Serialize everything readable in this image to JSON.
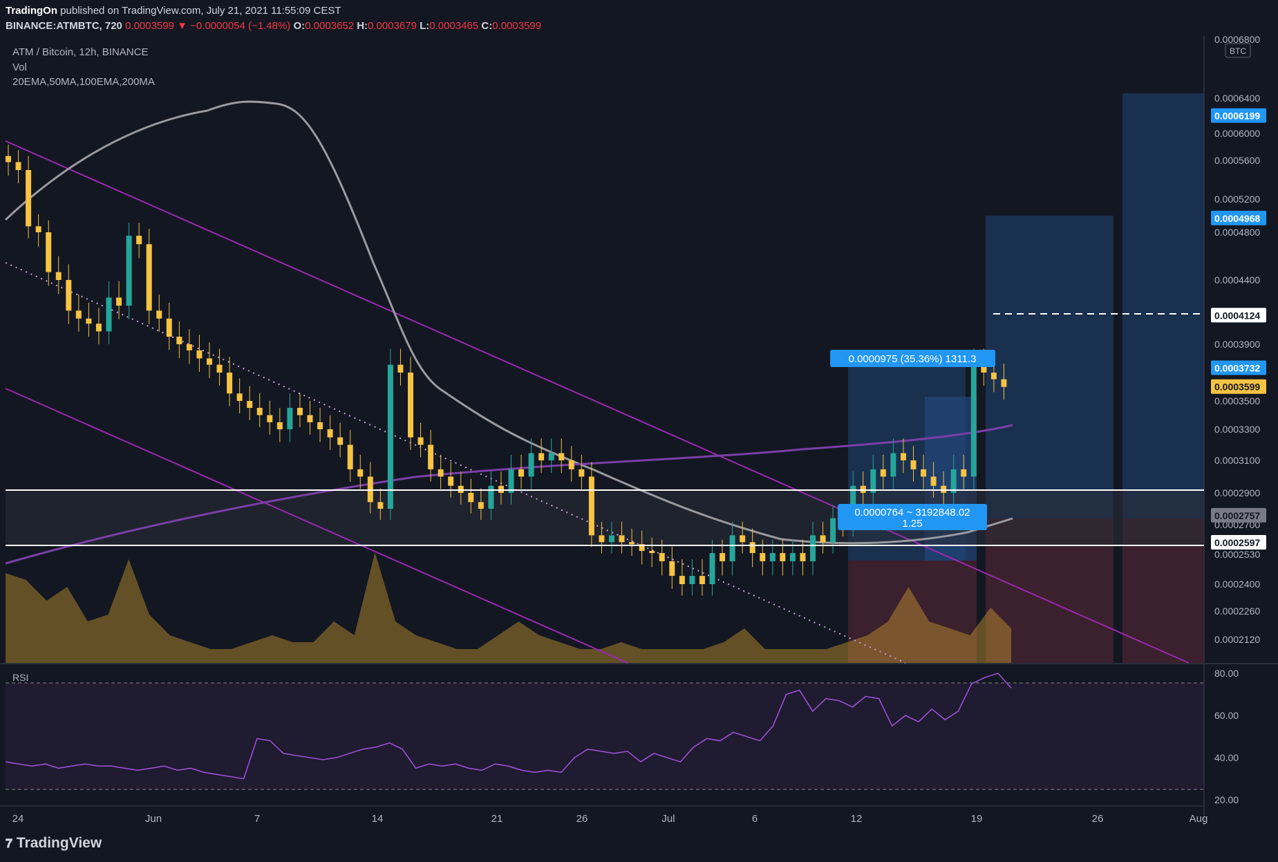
{
  "header": {
    "author": "TradingOn",
    "published": "published on TradingView.com, July 21, 2021 11:55:09 CEST",
    "symbol": "BINANCE:ATMBTC, 720",
    "last": "0.0003599",
    "change": "▼ −0.0000054 (−1.48%)",
    "o_label": "O:",
    "o": "0.0003652",
    "h_label": "H:",
    "h": "0.0003679",
    "l_label": "L:",
    "l": "0.0003465",
    "c_label": "C:",
    "c": "0.0003599"
  },
  "legend": {
    "pair": "ATM / Bitcoin, 12h, BINANCE",
    "vol": "Vol",
    "mas": "20EMA,50MA,100EMA,200MA"
  },
  "brand": "TradingView",
  "colors": {
    "background": "#131722",
    "up": "#26a69a",
    "down": "#f6c343",
    "channel": "#9c27b0",
    "ema": "#9a9aa0",
    "rsi_line": "#9c4fd6",
    "price_badge": "#2196f3",
    "current_badge": "#f6c343"
  },
  "chart_data": {
    "type": "candlestick",
    "title": "ATM / Bitcoin, 12h, BINANCE",
    "currency": "BTC",
    "y_axis_labels": [
      "0.0006800",
      "0.0006400",
      "0.0006000",
      "0.0005600",
      "0.0005200",
      "0.0004800",
      "0.0004400",
      "0.0003900",
      "0.0003500",
      "0.0003300",
      "0.0003100",
      "0.0002900",
      "0.0002700",
      "0.0002530",
      "0.0002400",
      "0.0002260",
      "0.0002120"
    ],
    "y_axis_values": [
      0.00068,
      0.00064,
      0.0006,
      0.00056,
      0.00052,
      0.00048,
      0.00044,
      0.00039,
      0.00035,
      0.00033,
      0.00031,
      0.00029,
      0.00027,
      0.000253,
      0.00024,
      0.000226,
      0.000212
    ],
    "x_axis_labels": [
      "24",
      "Jun",
      "7",
      "14",
      "21",
      "26",
      "Jul",
      "6",
      "12",
      "19",
      "26",
      "Aug"
    ],
    "price_badges": [
      {
        "value": "0.0006199",
        "style": "blue"
      },
      {
        "value": "0.0004968",
        "style": "blue"
      },
      {
        "value": "0.0004124",
        "style": "outline"
      },
      {
        "value": "0.0003732",
        "style": "blue"
      },
      {
        "value": "0.0003599",
        "style": "current"
      },
      {
        "value": "0.0002757",
        "style": "grey"
      },
      {
        "value": "0.0002597",
        "style": "outline"
      }
    ],
    "measure_labels": {
      "upper": "0.0000975 (35.36%) 1311.3",
      "lower_line1": "0.0000764 ~ 3192848.02",
      "lower_line2": "1.25"
    },
    "support_levels": [
      0.000292,
      0.0002597
    ],
    "dashed_level": 0.0004124,
    "candle_closes": [
      0.00055,
      0.00048,
      0.00044,
      0.00041,
      0.0004,
      0.00042,
      0.00047,
      0.00041,
      0.00039,
      0.00038,
      0.00037,
      0.00035,
      0.00034,
      0.00033,
      0.00034,
      0.00033,
      0.00032,
      0.0003,
      0.00028,
      0.00037,
      0.00032,
      0.0003,
      0.00029,
      0.00028,
      0.00029,
      0.0003,
      0.00031,
      0.00031,
      0.0003,
      0.00026,
      0.00026,
      0.000255,
      0.00025,
      0.00024,
      0.00024,
      0.00025,
      0.00026,
      0.00025,
      0.00025,
      0.00025,
      0.00026,
      0.00027,
      0.00029,
      0.0003,
      0.00031,
      0.0003,
      0.00029,
      0.0003,
      0.00037,
      0.0003599
    ],
    "rsi": {
      "label": "RSI",
      "axis_labels": [
        "80.00",
        "60.00",
        "40.00",
        "20.00"
      ],
      "axis_values": [
        80,
        60,
        40,
        20
      ],
      "upper_band": 70,
      "lower_band": 30,
      "values": [
        38,
        37,
        36,
        37,
        35,
        36,
        37,
        36,
        36,
        35,
        34,
        35,
        36,
        34,
        35,
        33,
        32,
        31,
        30,
        49,
        48,
        42,
        41,
        40,
        39,
        40,
        42,
        44,
        45,
        47,
        44,
        35,
        37,
        36,
        37,
        35,
        34,
        37,
        36,
        34,
        33,
        34,
        33,
        40,
        44,
        43,
        42,
        43,
        38,
        42,
        40,
        38,
        45,
        49,
        48,
        52,
        50,
        48,
        55,
        70,
        72,
        62,
        68,
        67,
        64,
        69,
        68,
        55,
        60,
        57,
        63,
        58,
        62,
        75,
        78,
        80,
        73
      ]
    }
  }
}
